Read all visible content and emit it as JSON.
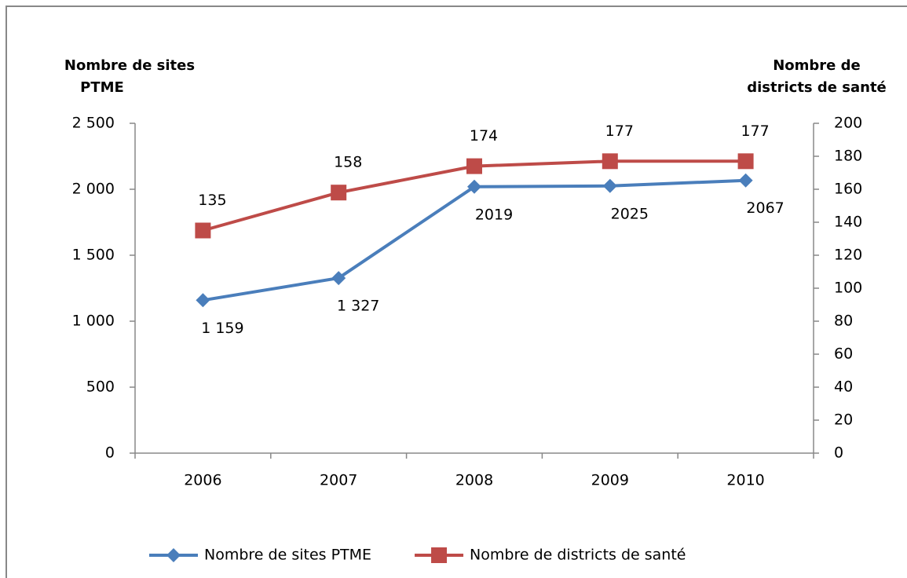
{
  "chart_data": {
    "type": "line",
    "ylabel": [
      "Nombre de sites",
      "PTME"
    ],
    "y2label": [
      "Nombre de",
      "districts de santé"
    ],
    "categories": [
      "2006",
      "2007",
      "2008",
      "2009",
      "2010"
    ],
    "series": [
      {
        "name": "Nombre de sites PTME",
        "color": "#4a7ebb",
        "marker": "diamond",
        "axis": "y",
        "values": [
          1159,
          1327,
          2019,
          2025,
          2067
        ],
        "value_labels": [
          "1 159",
          "1 327",
          "2019",
          "2025",
          "2067"
        ]
      },
      {
        "name": "Nombre de districts de santé",
        "color": "#be4b48",
        "marker": "square",
        "axis": "y2",
        "values": [
          135,
          158,
          174,
          177,
          177
        ]
      }
    ],
    "ylim": [
      0,
      2500
    ],
    "yticks": [
      0,
      500,
      {
        "value": 1000,
        "label": "1 000"
      },
      {
        "value": 1500,
        "label": "1 500"
      },
      {
        "value": 2000,
        "label": "2 000"
      },
      {
        "value": 2500,
        "label": "2 500"
      }
    ],
    "y2lim": [
      0,
      200
    ],
    "y2ticks": [
      0,
      20,
      40,
      60,
      80,
      100,
      120,
      140,
      160,
      180,
      200
    ],
    "legend": "bottom"
  }
}
